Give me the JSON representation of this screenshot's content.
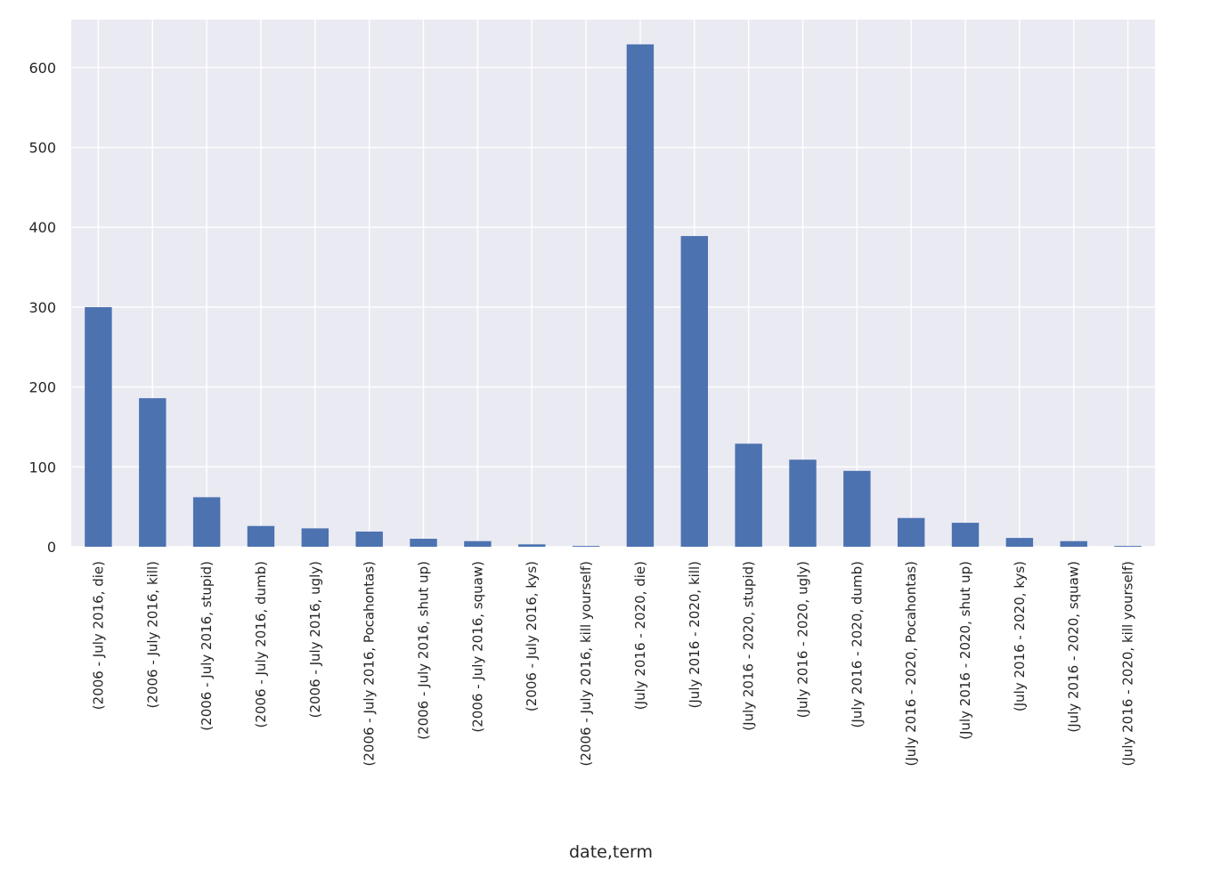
{
  "chart_data": {
    "type": "bar",
    "title": "",
    "xlabel": "date,term",
    "ylabel": "",
    "ylim": [
      0,
      660
    ],
    "yticks": [
      0,
      100,
      200,
      300,
      400,
      500,
      600
    ],
    "grid": true,
    "legend": "none",
    "colors": {
      "bar": "#4c72b0",
      "plot_bg": "#eaeaf2",
      "grid": "#ffffff"
    },
    "categories": [
      "(2006 - July 2016, die)",
      "(2006 - July 2016, kill)",
      "(2006 - July 2016, stupid)",
      "(2006 - July 2016, dumb)",
      "(2006 - July 2016, ugly)",
      "(2006 - July 2016, Pocahontas)",
      "(2006 - July 2016, shut up)",
      "(2006 - July 2016, squaw)",
      "(2006 - July 2016, kys)",
      "(2006 - July 2016, kill yourself)",
      "(July 2016 - 2020, die)",
      "(July 2016 - 2020, kill)",
      "(July 2016 - 2020, stupid)",
      "(July 2016 - 2020, ugly)",
      "(July 2016 - 2020, dumb)",
      "(July 2016 - 2020, Pocahontas)",
      "(July 2016 - 2020, shut up)",
      "(July 2016 - 2020, kys)",
      "(July 2016 - 2020, squaw)",
      "(July 2016 - 2020, kill yourself)"
    ],
    "values": [
      300,
      186,
      62,
      26,
      23,
      19,
      10,
      7,
      3,
      1,
      629,
      389,
      129,
      109,
      95,
      36,
      30,
      11,
      7,
      1
    ]
  }
}
